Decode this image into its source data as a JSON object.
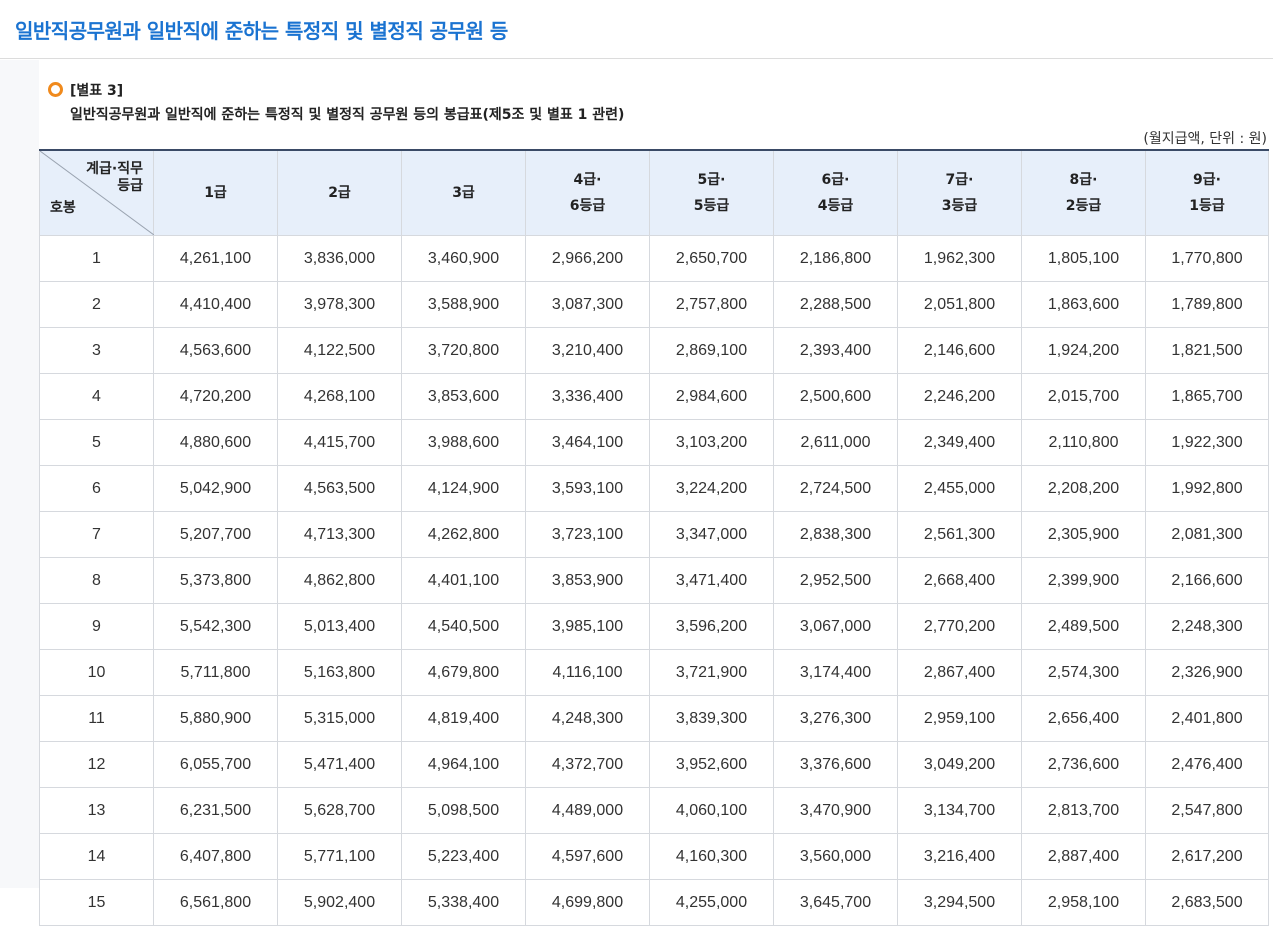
{
  "page": {
    "title": "일반직공무원과 일반직에 준하는 특정직 및 별정직 공무원 등"
  },
  "caption": {
    "label": "[별표 3]",
    "description": "일반직공무원과 일반직에 준하는 특정직 및 별정직 공무원 등의 봉급표(제5조 및 별표 1 관련)",
    "unit": "(월지급액, 단위 : 원)"
  },
  "table": {
    "corner": {
      "top_right_line1": "계급·직무",
      "top_right_line2": "등급",
      "bottom_left": "호봉"
    },
    "columns": [
      [
        "1급"
      ],
      [
        "2급"
      ],
      [
        "3급"
      ],
      [
        "4급·",
        "6등급"
      ],
      [
        "5급·",
        "5등급"
      ],
      [
        "6급·",
        "4등급"
      ],
      [
        "7급·",
        "3등급"
      ],
      [
        "8급·",
        "2등급"
      ],
      [
        "9급·",
        "1등급"
      ]
    ],
    "rows": [
      {
        "step": "1",
        "values": [
          "4,261,100",
          "3,836,000",
          "3,460,900",
          "2,966,200",
          "2,650,700",
          "2,186,800",
          "1,962,300",
          "1,805,100",
          "1,770,800"
        ]
      },
      {
        "step": "2",
        "values": [
          "4,410,400",
          "3,978,300",
          "3,588,900",
          "3,087,300",
          "2,757,800",
          "2,288,500",
          "2,051,800",
          "1,863,600",
          "1,789,800"
        ]
      },
      {
        "step": "3",
        "values": [
          "4,563,600",
          "4,122,500",
          "3,720,800",
          "3,210,400",
          "2,869,100",
          "2,393,400",
          "2,146,600",
          "1,924,200",
          "1,821,500"
        ]
      },
      {
        "step": "4",
        "values": [
          "4,720,200",
          "4,268,100",
          "3,853,600",
          "3,336,400",
          "2,984,600",
          "2,500,600",
          "2,246,200",
          "2,015,700",
          "1,865,700"
        ]
      },
      {
        "step": "5",
        "values": [
          "4,880,600",
          "4,415,700",
          "3,988,600",
          "3,464,100",
          "3,103,200",
          "2,611,000",
          "2,349,400",
          "2,110,800",
          "1,922,300"
        ]
      },
      {
        "step": "6",
        "values": [
          "5,042,900",
          "4,563,500",
          "4,124,900",
          "3,593,100",
          "3,224,200",
          "2,724,500",
          "2,455,000",
          "2,208,200",
          "1,992,800"
        ]
      },
      {
        "step": "7",
        "values": [
          "5,207,700",
          "4,713,300",
          "4,262,800",
          "3,723,100",
          "3,347,000",
          "2,838,300",
          "2,561,300",
          "2,305,900",
          "2,081,300"
        ]
      },
      {
        "step": "8",
        "values": [
          "5,373,800",
          "4,862,800",
          "4,401,100",
          "3,853,900",
          "3,471,400",
          "2,952,500",
          "2,668,400",
          "2,399,900",
          "2,166,600"
        ]
      },
      {
        "step": "9",
        "values": [
          "5,542,300",
          "5,013,400",
          "4,540,500",
          "3,985,100",
          "3,596,200",
          "3,067,000",
          "2,770,200",
          "2,489,500",
          "2,248,300"
        ]
      },
      {
        "step": "10",
        "values": [
          "5,711,800",
          "5,163,800",
          "4,679,800",
          "4,116,100",
          "3,721,900",
          "3,174,400",
          "2,867,400",
          "2,574,300",
          "2,326,900"
        ]
      },
      {
        "step": "11",
        "values": [
          "5,880,900",
          "5,315,000",
          "4,819,400",
          "4,248,300",
          "3,839,300",
          "3,276,300",
          "2,959,100",
          "2,656,400",
          "2,401,800"
        ]
      },
      {
        "step": "12",
        "values": [
          "6,055,700",
          "5,471,400",
          "4,964,100",
          "4,372,700",
          "3,952,600",
          "3,376,600",
          "3,049,200",
          "2,736,600",
          "2,476,400"
        ]
      },
      {
        "step": "13",
        "values": [
          "6,231,500",
          "5,628,700",
          "5,098,500",
          "4,489,000",
          "4,060,100",
          "3,470,900",
          "3,134,700",
          "2,813,700",
          "2,547,800"
        ]
      },
      {
        "step": "14",
        "values": [
          "6,407,800",
          "5,771,100",
          "5,223,400",
          "4,597,600",
          "4,160,300",
          "3,560,000",
          "3,216,400",
          "2,887,400",
          "2,617,200"
        ]
      },
      {
        "step": "15",
        "values": [
          "6,561,800",
          "5,902,400",
          "5,338,400",
          "4,699,800",
          "4,255,000",
          "3,645,700",
          "3,294,500",
          "2,958,100",
          "2,683,500"
        ]
      }
    ]
  }
}
